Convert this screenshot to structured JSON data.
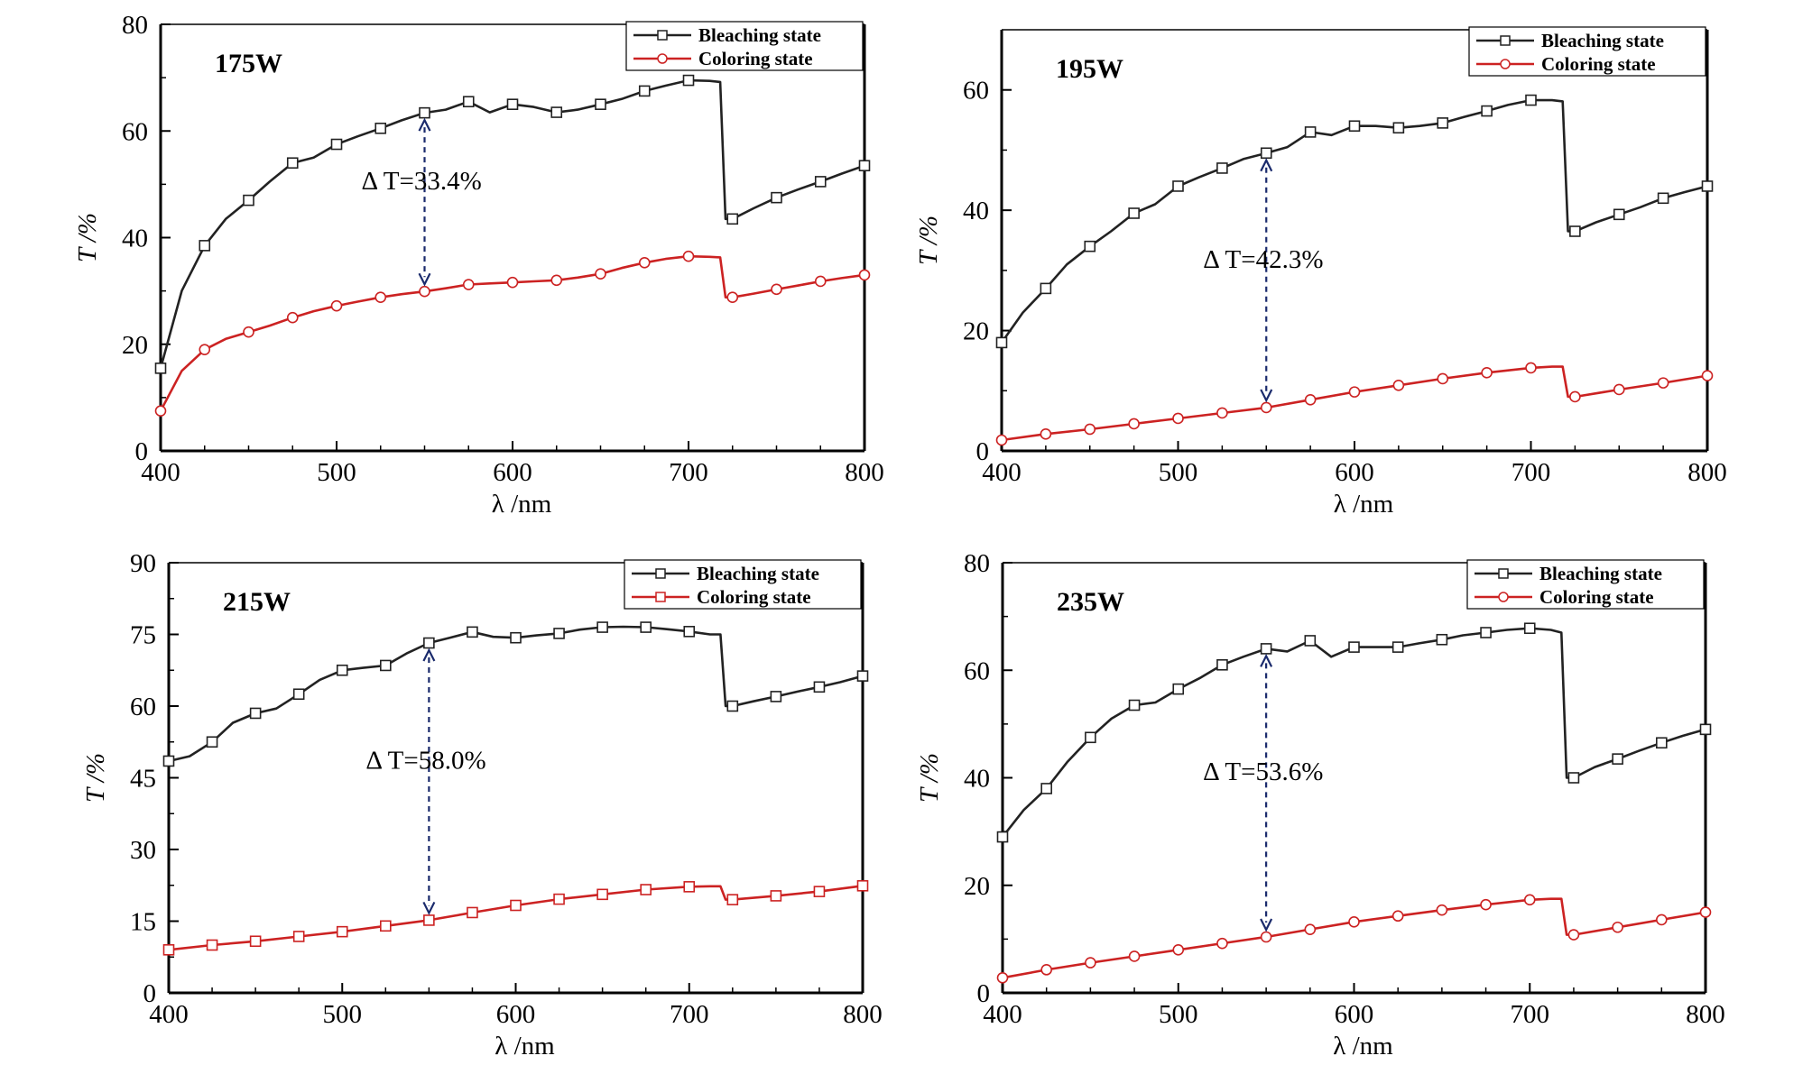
{
  "chart_data": [
    {
      "type": "line",
      "title": "175W",
      "xlabel": "λ /nm",
      "ylabel": "T /%",
      "xlim": [
        400,
        800
      ],
      "ylim": [
        0,
        80
      ],
      "xticks": [
        400,
        500,
        600,
        700,
        800
      ],
      "yticks": [
        0,
        20,
        40,
        60,
        80
      ],
      "grid": false,
      "legend_position": "top-right",
      "annotation": {
        "label": "Δ T=33.4%",
        "x": 550,
        "y_top": 63.4,
        "y_bottom": 29.9
      },
      "series": [
        {
          "name": "Bleaching state",
          "color": "#222222",
          "marker": "square",
          "x": [
            400,
            412,
            425,
            437,
            450,
            462,
            475,
            487,
            500,
            512,
            525,
            537,
            550,
            562,
            575,
            587,
            600,
            612,
            625,
            637,
            650,
            662,
            675,
            687,
            700,
            712,
            718,
            721,
            725,
            737,
            750,
            762,
            775,
            787,
            800
          ],
          "y": [
            15.5,
            30,
            38.5,
            43.5,
            47,
            50.5,
            54,
            55,
            57.5,
            59,
            60.5,
            62,
            63.4,
            64,
            65.5,
            63.5,
            65,
            64.5,
            63.5,
            64,
            65,
            66,
            67.5,
            68.5,
            69.5,
            69.4,
            69.2,
            43.5,
            43.5,
            45.5,
            47.5,
            49,
            50.5,
            52,
            53.5
          ],
          "markers_x": [
            400,
            425,
            450,
            475,
            500,
            525,
            550,
            575,
            600,
            625,
            650,
            675,
            700,
            725,
            750,
            775,
            800
          ]
        },
        {
          "name": "Coloring state",
          "color": "#cc2222",
          "marker": "circle",
          "x": [
            400,
            412,
            425,
            437,
            450,
            462,
            475,
            487,
            500,
            512,
            525,
            537,
            550,
            562,
            575,
            587,
            600,
            612,
            625,
            637,
            650,
            662,
            675,
            687,
            700,
            712,
            718,
            721,
            725,
            737,
            750,
            762,
            775,
            787,
            800
          ],
          "y": [
            7.5,
            15,
            19,
            21,
            22.3,
            23.5,
            25,
            26.2,
            27.2,
            28,
            28.8,
            29.4,
            29.9,
            30.5,
            31.2,
            31.4,
            31.6,
            31.8,
            32,
            32.5,
            33.2,
            34.3,
            35.3,
            36,
            36.5,
            36.4,
            36.3,
            28.8,
            28.8,
            29.5,
            30.3,
            31,
            31.8,
            32.4,
            33
          ],
          "markers_x": [
            400,
            425,
            450,
            475,
            500,
            525,
            550,
            575,
            600,
            625,
            650,
            675,
            700,
            725,
            750,
            775,
            800
          ]
        }
      ]
    },
    {
      "type": "line",
      "title": "195W",
      "xlabel": "λ /nm",
      "ylabel": "T /%",
      "xlim": [
        400,
        800
      ],
      "ylim": [
        0,
        70
      ],
      "xticks": [
        400,
        500,
        600,
        700,
        800
      ],
      "yticks": [
        0,
        20,
        40,
        60
      ],
      "grid": false,
      "legend_position": "top-right",
      "annotation": {
        "label": "Δ T=42.3%",
        "x": 550,
        "y_top": 49.5,
        "y_bottom": 7.2
      },
      "series": [
        {
          "name": "Bleaching state",
          "color": "#222222",
          "marker": "square",
          "x": [
            400,
            412,
            425,
            437,
            450,
            462,
            475,
            487,
            500,
            512,
            525,
            537,
            550,
            562,
            575,
            587,
            600,
            612,
            625,
            637,
            650,
            662,
            675,
            687,
            700,
            712,
            718,
            721,
            725,
            737,
            750,
            762,
            775,
            787,
            800
          ],
          "y": [
            18,
            23,
            27,
            31,
            34,
            36.5,
            39.5,
            41,
            44,
            45.5,
            47,
            48.5,
            49.5,
            50.5,
            53,
            52.5,
            54,
            54,
            53.7,
            54,
            54.5,
            55.5,
            56.5,
            57.5,
            58.3,
            58.3,
            58.1,
            36.5,
            36.5,
            38,
            39.3,
            40.5,
            42,
            43,
            44
          ],
          "markers_x": [
            400,
            425,
            450,
            475,
            500,
            525,
            550,
            575,
            600,
            625,
            650,
            675,
            700,
            725,
            750,
            775,
            800
          ]
        },
        {
          "name": "Coloring state",
          "color": "#cc2222",
          "marker": "circle",
          "x": [
            400,
            425,
            450,
            475,
            500,
            525,
            550,
            575,
            600,
            625,
            650,
            675,
            700,
            712,
            718,
            721,
            725,
            750,
            775,
            800
          ],
          "y": [
            1.8,
            2.8,
            3.6,
            4.5,
            5.4,
            6.3,
            7.2,
            8.5,
            9.8,
            10.9,
            12,
            13,
            13.8,
            14,
            14,
            9,
            9,
            10.2,
            11.3,
            12.5
          ],
          "markers_x": [
            400,
            425,
            450,
            475,
            500,
            525,
            550,
            575,
            600,
            625,
            650,
            675,
            700,
            725,
            750,
            775,
            800
          ]
        }
      ]
    },
    {
      "type": "line",
      "title": "215W",
      "xlabel": "λ /nm",
      "ylabel": "T /%",
      "xlim": [
        400,
        800
      ],
      "ylim": [
        0,
        90
      ],
      "xticks": [
        400,
        500,
        600,
        700,
        800
      ],
      "yticks": [
        0,
        15,
        30,
        45,
        60,
        75,
        90
      ],
      "grid": false,
      "legend_position": "top-right",
      "annotation": {
        "label": "Δ T=58.0%",
        "x": 550,
        "y_top": 73.2,
        "y_bottom": 15.2
      },
      "series": [
        {
          "name": "Bleaching state",
          "color": "#222222",
          "marker": "square",
          "x": [
            400,
            412,
            425,
            437,
            450,
            462,
            475,
            487,
            500,
            512,
            525,
            537,
            550,
            562,
            575,
            587,
            600,
            612,
            625,
            637,
            650,
            662,
            675,
            687,
            700,
            712,
            718,
            721,
            725,
            737,
            750,
            762,
            775,
            787,
            800
          ],
          "y": [
            48.5,
            49.5,
            52.5,
            56.5,
            58.5,
            59.5,
            62.5,
            65.5,
            67.5,
            68,
            68.5,
            71,
            73.2,
            74.3,
            75.5,
            74.5,
            74.3,
            74.8,
            75.2,
            76,
            76.5,
            76.6,
            76.5,
            76.1,
            75.6,
            75,
            75,
            60,
            60,
            61,
            62,
            63,
            64,
            65,
            66.3
          ],
          "markers_x": [
            400,
            425,
            450,
            475,
            500,
            525,
            550,
            575,
            600,
            625,
            650,
            675,
            700,
            725,
            750,
            775,
            800
          ]
        },
        {
          "name": "Coloring state",
          "color": "#cc2222",
          "marker": "square",
          "x": [
            400,
            425,
            450,
            475,
            500,
            525,
            550,
            575,
            600,
            625,
            650,
            675,
            700,
            712,
            718,
            721,
            725,
            750,
            775,
            800
          ],
          "y": [
            9,
            10,
            10.8,
            11.8,
            12.8,
            14,
            15.2,
            16.8,
            18.3,
            19.6,
            20.6,
            21.6,
            22.2,
            22.3,
            22.3,
            19.5,
            19.5,
            20.3,
            21.2,
            22.4
          ],
          "markers_x": [
            400,
            425,
            450,
            475,
            500,
            525,
            550,
            575,
            600,
            625,
            650,
            675,
            700,
            725,
            750,
            775,
            800
          ]
        }
      ]
    },
    {
      "type": "line",
      "title": "235W",
      "xlabel": "λ /nm",
      "ylabel": "T /%",
      "xlim": [
        400,
        800
      ],
      "ylim": [
        0,
        80
      ],
      "xticks": [
        400,
        500,
        600,
        700,
        800
      ],
      "yticks": [
        0,
        20,
        40,
        60,
        80
      ],
      "grid": false,
      "legend_position": "top-right",
      "annotation": {
        "label": "Δ T=53.6%",
        "x": 550,
        "y_top": 64,
        "y_bottom": 10.4
      },
      "series": [
        {
          "name": "Bleaching state",
          "color": "#222222",
          "marker": "square",
          "x": [
            400,
            412,
            425,
            437,
            450,
            462,
            475,
            487,
            500,
            512,
            525,
            537,
            550,
            562,
            575,
            587,
            600,
            612,
            625,
            637,
            650,
            662,
            675,
            687,
            700,
            712,
            718,
            721,
            725,
            737,
            750,
            762,
            775,
            787,
            800
          ],
          "y": [
            29,
            34,
            38,
            43,
            47.5,
            51,
            53.5,
            54,
            56.5,
            58.5,
            61,
            62.5,
            64,
            63.5,
            65.5,
            62.5,
            64.3,
            64.3,
            64.3,
            65,
            65.7,
            66.5,
            67,
            67.5,
            67.8,
            67.5,
            67,
            40,
            40,
            42,
            43.5,
            45,
            46.5,
            47.8,
            49
          ],
          "markers_x": [
            400,
            425,
            450,
            475,
            500,
            525,
            550,
            575,
            600,
            625,
            650,
            675,
            700,
            725,
            750,
            775,
            800
          ]
        },
        {
          "name": "Coloring state",
          "color": "#cc2222",
          "marker": "circle",
          "x": [
            400,
            425,
            450,
            475,
            500,
            525,
            550,
            575,
            600,
            625,
            650,
            675,
            700,
            712,
            718,
            721,
            725,
            750,
            775,
            800
          ],
          "y": [
            2.8,
            4.3,
            5.6,
            6.8,
            8,
            9.2,
            10.4,
            11.8,
            13.2,
            14.3,
            15.4,
            16.4,
            17.3,
            17.5,
            17.5,
            10.8,
            10.8,
            12.2,
            13.6,
            15
          ],
          "markers_x": [
            400,
            425,
            450,
            475,
            500,
            525,
            550,
            575,
            600,
            625,
            650,
            675,
            700,
            725,
            750,
            775,
            800
          ]
        }
      ]
    }
  ]
}
